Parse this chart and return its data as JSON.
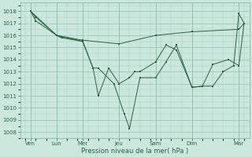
{
  "bg_color": "#cce8de",
  "grid_color": "#88bba8",
  "line_color": "#2a6040",
  "xlabel": "Pression niveau de la mer( hPa )",
  "ylim": [
    1007.5,
    1018.7
  ],
  "yticks": [
    1008,
    1009,
    1010,
    1011,
    1012,
    1013,
    1014,
    1015,
    1016,
    1017,
    1018
  ],
  "xlim": [
    -0.5,
    21.5
  ],
  "xtick_positions": [
    0.5,
    3.0,
    5.5,
    9.0,
    12.5,
    16.0,
    20.5
  ],
  "xtick_labels": [
    "Ven",
    "Lun",
    "Mer",
    "Jeu",
    "Sam",
    "Dim",
    "Mar"
  ],
  "vline_positions": [
    0.5,
    3.0,
    5.5,
    9.0,
    12.5,
    16.0,
    20.5
  ],
  "series": [
    {
      "x": [
        0.5,
        1.0,
        3.0,
        3.5
      ],
      "y": [
        1018.0,
        1017.5,
        1016.0,
        1015.8
      ]
    },
    {
      "x": [
        0.5,
        3.0,
        5.5,
        9.0,
        12.5,
        16.0,
        20.5,
        21.0
      ],
      "y": [
        1018.0,
        1016.0,
        1015.6,
        1015.3,
        1016.0,
        1016.3,
        1016.5,
        1017.0
      ]
    },
    {
      "x": [
        0.5,
        1.0,
        3.0,
        3.5,
        5.5,
        6.5,
        7.0,
        8.0,
        9.0,
        10.0,
        10.5,
        11.0,
        12.5,
        13.5,
        14.5,
        16.0,
        17.0,
        18.0,
        19.5,
        20.5,
        21.0
      ],
      "y": [
        1018.0,
        1017.2,
        1016.0,
        1015.8,
        1015.5,
        1013.3,
        1011.0,
        1013.3,
        1012.0,
        1012.5,
        1013.0,
        1013.0,
        1013.8,
        1015.2,
        1014.8,
        1011.7,
        1011.8,
        1013.6,
        1014.0,
        1013.5,
        1017.0
      ]
    },
    {
      "x": [
        3.0,
        5.5,
        6.5,
        7.0,
        8.5,
        9.5,
        10.0,
        11.0,
        12.5,
        13.5,
        14.5,
        16.0,
        17.0,
        18.0,
        19.0,
        20.0,
        20.5,
        21.0
      ],
      "y": [
        1016.0,
        1015.5,
        1013.3,
        1013.3,
        1012.0,
        1009.5,
        1008.3,
        1012.5,
        1012.5,
        1013.8,
        1015.2,
        1011.7,
        1011.8,
        1011.8,
        1013.0,
        1013.5,
        1017.8,
        1017.0
      ]
    }
  ]
}
